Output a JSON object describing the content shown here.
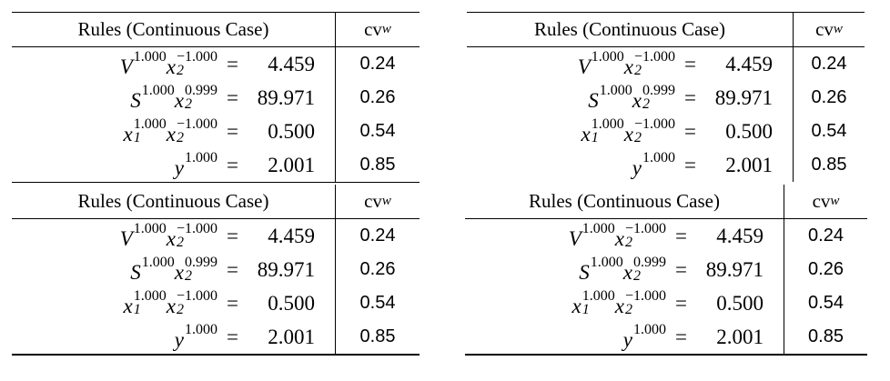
{
  "tables": [
    {
      "header": {
        "rules": "Rules (Continuous Case)",
        "cv": "cv",
        "cv_sub": "w"
      },
      "rows": [
        {
          "terms": [
            {
              "base": "V",
              "sup": "1.000"
            },
            {
              "base": "x",
              "sub": "2",
              "sup": "−1.000"
            }
          ],
          "relation": "=",
          "value": "4.459",
          "cv": "0.24"
        },
        {
          "terms": [
            {
              "base": "S",
              "sup": "1.000"
            },
            {
              "base": "x",
              "sub": "2",
              "sup": "0.999"
            }
          ],
          "relation": "=",
          "value": "89.971",
          "cv": "0.26"
        },
        {
          "terms": [
            {
              "base": "x",
              "sub": "1",
              "sup": "1.000"
            },
            {
              "base": "x",
              "sub": "2",
              "sup": "−1.000"
            }
          ],
          "relation": "=",
          "value": "0.500",
          "cv": "0.54"
        },
        {
          "terms": [
            {
              "base": "y",
              "sup": "1.000"
            }
          ],
          "relation": "=",
          "value": "2.001",
          "cv": "0.85"
        }
      ]
    },
    {
      "header": {
        "rules": "Rules (Continuous Case)",
        "cv": "cv",
        "cv_sub": "w"
      },
      "rows": [
        {
          "terms": [
            {
              "base": "V",
              "sup": "1.000"
            },
            {
              "base": "x",
              "sub": "2",
              "sup": "−1.000"
            }
          ],
          "relation": "=",
          "value": "4.459",
          "cv": "0.24"
        },
        {
          "terms": [
            {
              "base": "S",
              "sup": "1.000"
            },
            {
              "base": "x",
              "sub": "2",
              "sup": "0.999"
            }
          ],
          "relation": "=",
          "value": "89.971",
          "cv": "0.26"
        },
        {
          "terms": [
            {
              "base": "x",
              "sub": "1",
              "sup": "1.000"
            },
            {
              "base": "x",
              "sub": "2",
              "sup": "−1.000"
            }
          ],
          "relation": "=",
          "value": "0.500",
          "cv": "0.54"
        },
        {
          "terms": [
            {
              "base": "y",
              "sup": "1.000"
            }
          ],
          "relation": "=",
          "value": "2.001",
          "cv": "0.85"
        }
      ]
    },
    {
      "header": {
        "rules": "Rules (Continuous Case)",
        "cv": "cv",
        "cv_sub": "w"
      },
      "rows": [
        {
          "terms": [
            {
              "base": "V",
              "sup": "1.000"
            },
            {
              "base": "x",
              "sub": "2",
              "sup": "−1.000"
            }
          ],
          "relation": "=",
          "value": "4.459",
          "cv": "0.24"
        },
        {
          "terms": [
            {
              "base": "S",
              "sup": "1.000"
            },
            {
              "base": "x",
              "sub": "2",
              "sup": "0.999"
            }
          ],
          "relation": "=",
          "value": "89.971",
          "cv": "0.26"
        },
        {
          "terms": [
            {
              "base": "x",
              "sub": "1",
              "sup": "1.000"
            },
            {
              "base": "x",
              "sub": "2",
              "sup": "−1.000"
            }
          ],
          "relation": "=",
          "value": "0.500",
          "cv": "0.54"
        },
        {
          "terms": [
            {
              "base": "y",
              "sup": "1.000"
            }
          ],
          "relation": "=",
          "value": "2.001",
          "cv": "0.85"
        }
      ]
    },
    {
      "header": {
        "rules": "Rules (Continuous Case)",
        "cv": "cv",
        "cv_sub": "w"
      },
      "rows": [
        {
          "terms": [
            {
              "base": "V",
              "sup": "1.000"
            },
            {
              "base": "x",
              "sub": "2",
              "sup": "−1.000"
            }
          ],
          "relation": "=",
          "value": "4.459",
          "cv": "0.24"
        },
        {
          "terms": [
            {
              "base": "S",
              "sup": "1.000"
            },
            {
              "base": "x",
              "sub": "2",
              "sup": "0.999"
            }
          ],
          "relation": "=",
          "value": "89.971",
          "cv": "0.26"
        },
        {
          "terms": [
            {
              "base": "x",
              "sub": "1",
              "sup": "1.000"
            },
            {
              "base": "x",
              "sub": "2",
              "sup": "−1.000"
            }
          ],
          "relation": "=",
          "value": "0.500",
          "cv": "0.54"
        },
        {
          "terms": [
            {
              "base": "y",
              "sup": "1.000"
            }
          ],
          "relation": "=",
          "value": "2.001",
          "cv": "0.85"
        }
      ]
    }
  ]
}
